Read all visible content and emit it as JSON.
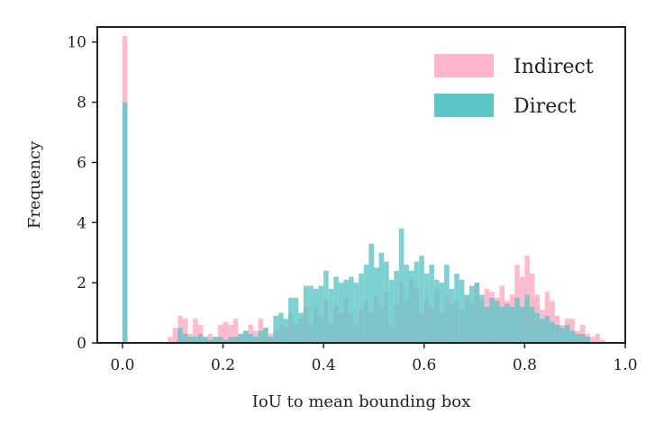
{
  "chart_data": {
    "type": "histogram",
    "xlabel": "IoU to mean bounding box",
    "ylabel": "Frequency",
    "xlim": [
      -0.05,
      1.0
    ],
    "ylim": [
      0,
      10.5
    ],
    "x_ticks": [
      "0.0",
      "0.2",
      "0.4",
      "0.6",
      "0.8",
      "1.0"
    ],
    "y_ticks": [
      "0",
      "2",
      "4",
      "6",
      "8",
      "10"
    ],
    "legend_position": "top-right",
    "bin_width": 0.01,
    "grid": false,
    "series": [
      {
        "name": "Indirect",
        "color": "#ffb6c8",
        "bins": [
          [
            0.0,
            10.2
          ],
          [
            0.09,
            0.2
          ],
          [
            0.1,
            0.5
          ],
          [
            0.11,
            0.9
          ],
          [
            0.12,
            0.8
          ],
          [
            0.13,
            0.3
          ],
          [
            0.14,
            0.8
          ],
          [
            0.15,
            0.6
          ],
          [
            0.16,
            0.2
          ],
          [
            0.17,
            0.3
          ],
          [
            0.18,
            0.2
          ],
          [
            0.19,
            0.6
          ],
          [
            0.2,
            0.7
          ],
          [
            0.21,
            0.6
          ],
          [
            0.22,
            0.8
          ],
          [
            0.23,
            0.3
          ],
          [
            0.24,
            0.4
          ],
          [
            0.25,
            0.6
          ],
          [
            0.26,
            0.4
          ],
          [
            0.27,
            0.8
          ],
          [
            0.28,
            0.5
          ],
          [
            0.29,
            0.3
          ],
          [
            0.3,
            0.4
          ],
          [
            0.31,
            0.6
          ],
          [
            0.32,
            0.5
          ],
          [
            0.33,
            1.0
          ],
          [
            0.34,
            0.6
          ],
          [
            0.35,
            0.8
          ],
          [
            0.36,
            1.2
          ],
          [
            0.37,
            0.6
          ],
          [
            0.38,
            1.2
          ],
          [
            0.39,
            0.9
          ],
          [
            0.4,
            1.4
          ],
          [
            0.41,
            0.6
          ],
          [
            0.42,
            1.2
          ],
          [
            0.43,
            1.0
          ],
          [
            0.44,
            1.5
          ],
          [
            0.45,
            1.0
          ],
          [
            0.46,
            0.6
          ],
          [
            0.47,
            1.1
          ],
          [
            0.48,
            1.4
          ],
          [
            0.49,
            1.0
          ],
          [
            0.5,
            1.6
          ],
          [
            0.51,
            1.2
          ],
          [
            0.52,
            1.7
          ],
          [
            0.53,
            0.6
          ],
          [
            0.54,
            1.3
          ],
          [
            0.55,
            2.0
          ],
          [
            0.56,
            1.4
          ],
          [
            0.57,
            2.1
          ],
          [
            0.58,
            1.8
          ],
          [
            0.59,
            1.0
          ],
          [
            0.6,
            1.5
          ],
          [
            0.61,
            1.2
          ],
          [
            0.62,
            1.8
          ],
          [
            0.63,
            1.0
          ],
          [
            0.64,
            1.6
          ],
          [
            0.65,
            1.3
          ],
          [
            0.66,
            1.4
          ],
          [
            0.67,
            1.1
          ],
          [
            0.68,
            1.5
          ],
          [
            0.69,
            1.3
          ],
          [
            0.7,
            2.0
          ],
          [
            0.71,
            1.4
          ],
          [
            0.72,
            1.8
          ],
          [
            0.73,
            1.7
          ],
          [
            0.74,
            1.5
          ],
          [
            0.75,
            1.9
          ],
          [
            0.76,
            1.4
          ],
          [
            0.77,
            1.6
          ],
          [
            0.78,
            2.6
          ],
          [
            0.79,
            2.2
          ],
          [
            0.8,
            2.9
          ],
          [
            0.81,
            2.3
          ],
          [
            0.82,
            1.6
          ],
          [
            0.83,
            1.1
          ],
          [
            0.84,
            1.7
          ],
          [
            0.85,
            1.4
          ],
          [
            0.86,
            0.9
          ],
          [
            0.87,
            0.6
          ],
          [
            0.88,
            0.8
          ],
          [
            0.89,
            0.8
          ],
          [
            0.9,
            0.4
          ],
          [
            0.91,
            0.6
          ],
          [
            0.92,
            0.3
          ],
          [
            0.93,
            0.2
          ],
          [
            0.94,
            0.3
          ],
          [
            0.95,
            0.1
          ]
        ]
      },
      {
        "name": "Direct",
        "color": "#5cc6c6",
        "bins": [
          [
            0.0,
            8.0
          ],
          [
            0.11,
            0.5
          ],
          [
            0.12,
            0.3
          ],
          [
            0.13,
            0.2
          ],
          [
            0.14,
            0.2
          ],
          [
            0.15,
            0.3
          ],
          [
            0.16,
            0.2
          ],
          [
            0.17,
            0.1
          ],
          [
            0.18,
            0.2
          ],
          [
            0.19,
            0.2
          ],
          [
            0.2,
            0.1
          ],
          [
            0.21,
            0.2
          ],
          [
            0.22,
            0.2
          ],
          [
            0.23,
            0.3
          ],
          [
            0.24,
            0.4
          ],
          [
            0.25,
            0.3
          ],
          [
            0.26,
            0.2
          ],
          [
            0.27,
            0.4
          ],
          [
            0.28,
            0.5
          ],
          [
            0.29,
            0.2
          ],
          [
            0.3,
            0.9
          ],
          [
            0.31,
            1.0
          ],
          [
            0.32,
            0.8
          ],
          [
            0.33,
            1.5
          ],
          [
            0.34,
            1.5
          ],
          [
            0.35,
            1.0
          ],
          [
            0.36,
            1.9
          ],
          [
            0.37,
            1.9
          ],
          [
            0.38,
            1.8
          ],
          [
            0.39,
            1.9
          ],
          [
            0.4,
            2.4
          ],
          [
            0.41,
            1.8
          ],
          [
            0.42,
            2.2
          ],
          [
            0.43,
            2.0
          ],
          [
            0.44,
            2.1
          ],
          [
            0.45,
            2.2
          ],
          [
            0.46,
            2.0
          ],
          [
            0.47,
            2.3
          ],
          [
            0.48,
            2.6
          ],
          [
            0.49,
            3.3
          ],
          [
            0.5,
            2.5
          ],
          [
            0.51,
            3.0
          ],
          [
            0.52,
            2.7
          ],
          [
            0.53,
            2.1
          ],
          [
            0.54,
            2.4
          ],
          [
            0.55,
            3.8
          ],
          [
            0.56,
            2.6
          ],
          [
            0.57,
            2.4
          ],
          [
            0.58,
            2.7
          ],
          [
            0.59,
            2.9
          ],
          [
            0.6,
            2.3
          ],
          [
            0.61,
            2.6
          ],
          [
            0.62,
            2.1
          ],
          [
            0.63,
            2.0
          ],
          [
            0.64,
            2.6
          ],
          [
            0.65,
            1.8
          ],
          [
            0.66,
            2.3
          ],
          [
            0.67,
            2.1
          ],
          [
            0.68,
            1.6
          ],
          [
            0.69,
            1.9
          ],
          [
            0.7,
            2.0
          ],
          [
            0.71,
            1.6
          ],
          [
            0.72,
            1.2
          ],
          [
            0.73,
            1.5
          ],
          [
            0.74,
            1.4
          ],
          [
            0.75,
            1.2
          ],
          [
            0.76,
            1.3
          ],
          [
            0.77,
            1.2
          ],
          [
            0.78,
            1.5
          ],
          [
            0.79,
            1.2
          ],
          [
            0.8,
            1.6
          ],
          [
            0.81,
            1.2
          ],
          [
            0.82,
            1.0
          ],
          [
            0.83,
            0.8
          ],
          [
            0.84,
            0.9
          ],
          [
            0.85,
            0.7
          ],
          [
            0.86,
            0.6
          ],
          [
            0.87,
            0.5
          ],
          [
            0.88,
            0.6
          ],
          [
            0.89,
            0.4
          ],
          [
            0.9,
            0.3
          ],
          [
            0.91,
            0.3
          ],
          [
            0.92,
            0.2
          ]
        ]
      }
    ]
  }
}
